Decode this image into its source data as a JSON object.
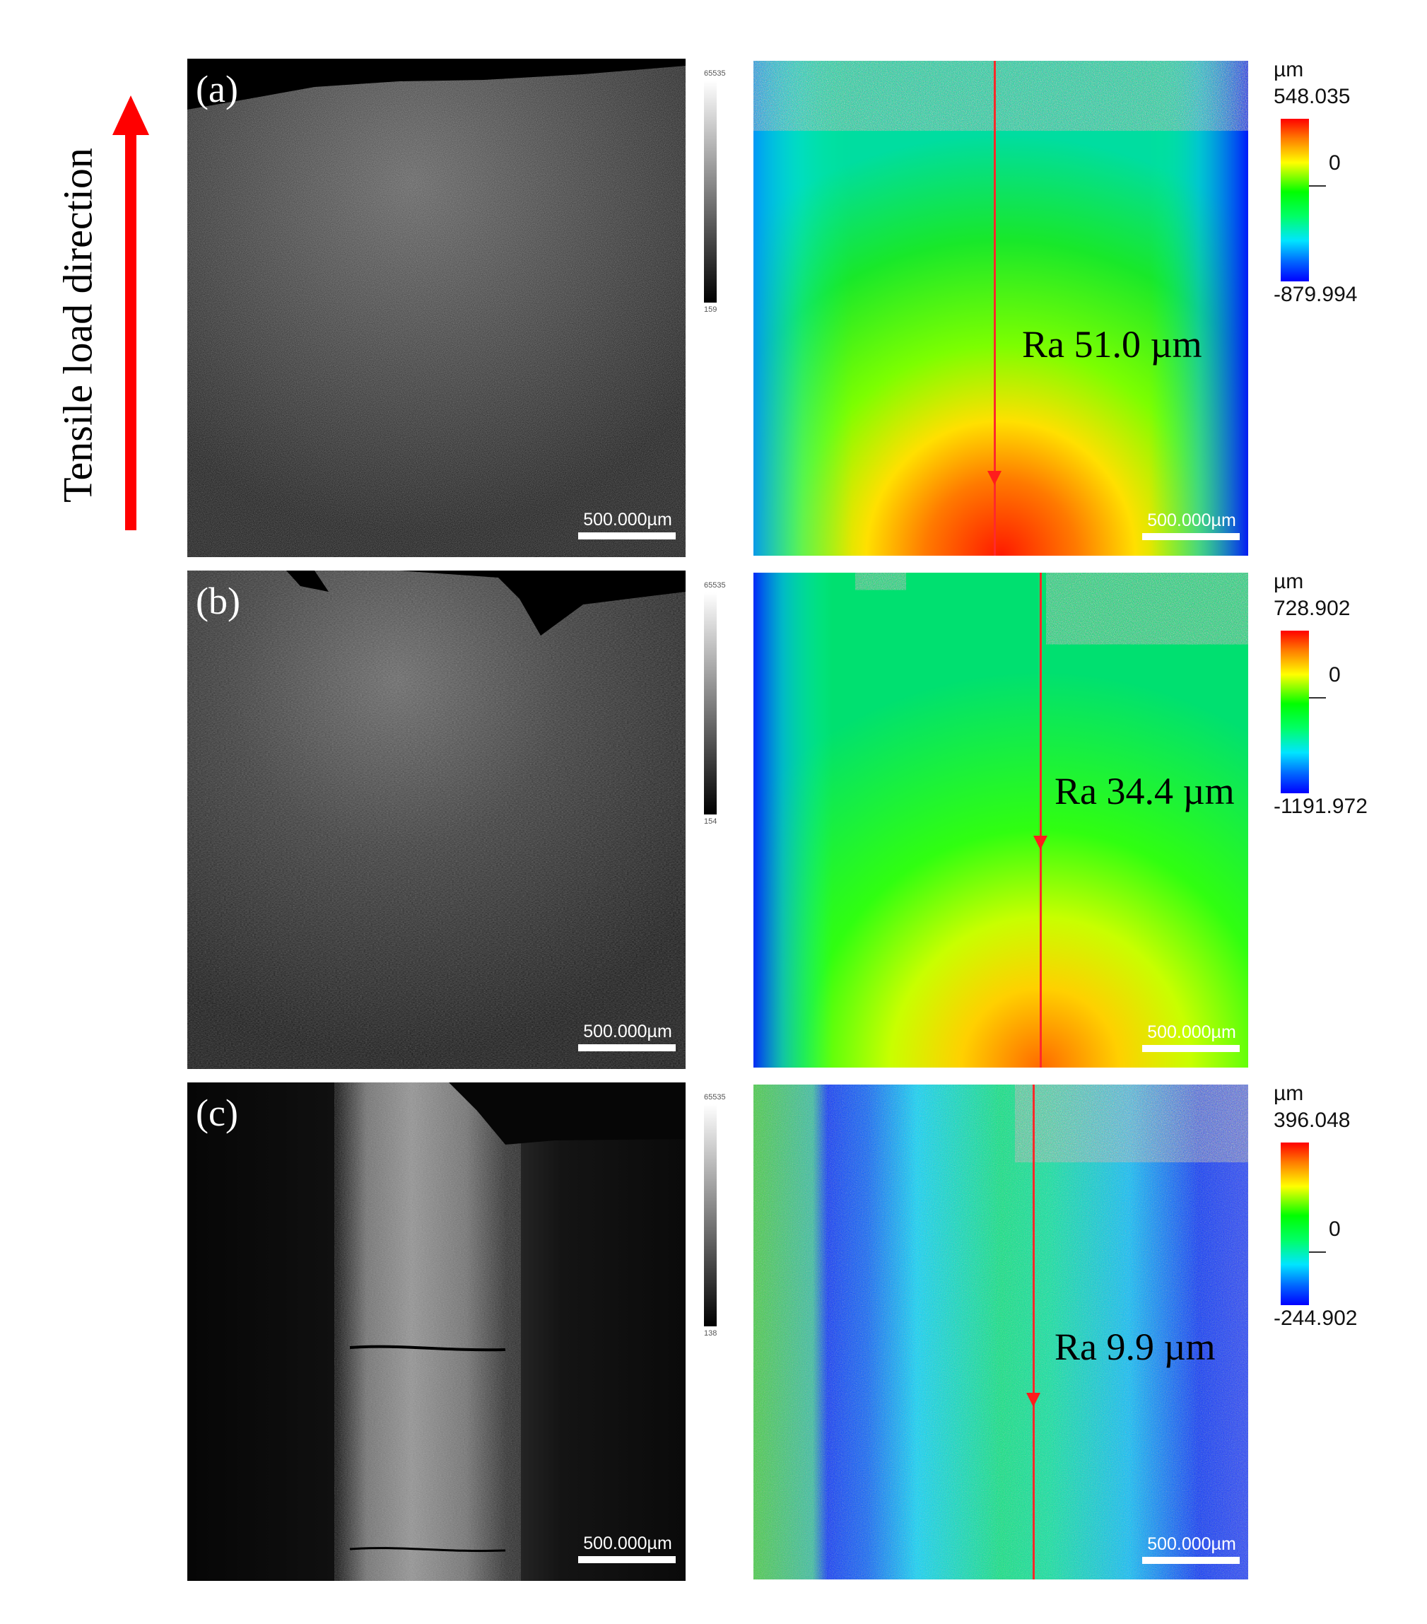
{
  "side_label": "Tensile load direction",
  "colors": {
    "arrow": "#ff0000",
    "profile_line": "#ff2a2a"
  },
  "panels": [
    {
      "letter": "(a)",
      "sem_scale": "500.000µm",
      "map_scale": "500.000µm",
      "gray_top": "65535",
      "gray_bottom": "159",
      "unit": "µm",
      "max": "548.035",
      "zero": "0",
      "min": "-879.994",
      "roughness": "Ra 51.0 µm"
    },
    {
      "letter": "(b)",
      "sem_scale": "500.000µm",
      "map_scale": "500.000µm",
      "gray_top": "65535",
      "gray_bottom": "154",
      "unit": "µm",
      "max": "728.902",
      "zero": "0",
      "min": "-1191.972",
      "roughness": "Ra 34.4 µm"
    },
    {
      "letter": "(c)",
      "sem_scale": "500.000µm",
      "map_scale": "500.000µm",
      "gray_top": "65535",
      "gray_bottom": "138",
      "unit": "µm",
      "max": "396.048",
      "zero": "0",
      "min": "-244.902",
      "roughness": "Ra 9.9 µm"
    }
  ]
}
